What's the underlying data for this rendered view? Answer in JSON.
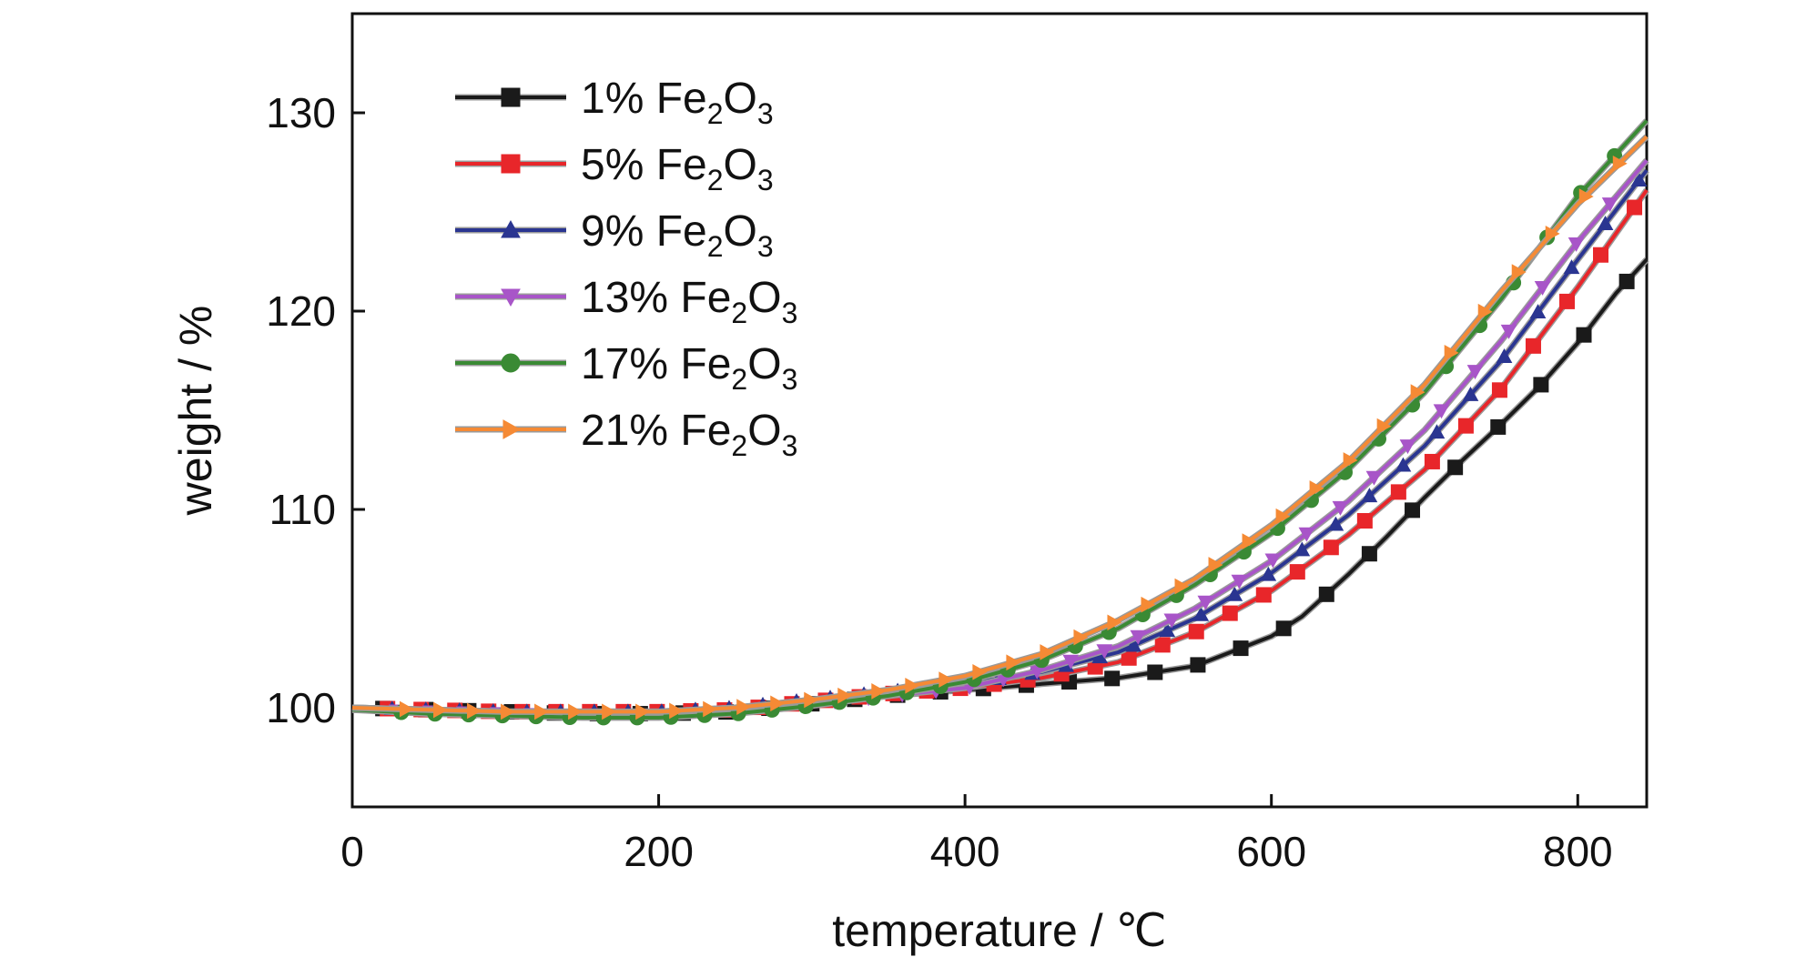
{
  "chart_data": {
    "type": "line",
    "title": "",
    "xlabel": "temperature / ℃",
    "ylabel": "weight / %",
    "xlim": [
      0,
      845
    ],
    "ylim": [
      95,
      135
    ],
    "xticks": [
      0,
      200,
      400,
      600,
      800
    ],
    "yticks": [
      100,
      110,
      120,
      130
    ],
    "grid": false,
    "legend_position": "top-left",
    "series": [
      {
        "name": "1% Fe2O3",
        "label_parts": [
          "1% Fe",
          "2",
          "O",
          "3"
        ],
        "color": "#1a1a1a",
        "marker": "square",
        "x": [
          0,
          50,
          100,
          150,
          200,
          250,
          300,
          350,
          400,
          450,
          500,
          550,
          600,
          620,
          650,
          675,
          700,
          725,
          750,
          775,
          800,
          825,
          845
        ],
        "y": [
          100.0,
          99.9,
          99.8,
          99.7,
          99.7,
          99.8,
          100.2,
          100.6,
          100.9,
          101.2,
          101.5,
          102.1,
          103.6,
          104.6,
          106.7,
          108.6,
          110.6,
          112.5,
          114.3,
          116.2,
          118.4,
          120.9,
          122.6
        ]
      },
      {
        "name": "5% Fe2O3",
        "label_parts": [
          "5% Fe",
          "2",
          "O",
          "3"
        ],
        "color": "#e8262a",
        "marker": "square",
        "x": [
          0,
          50,
          100,
          150,
          200,
          250,
          300,
          350,
          400,
          450,
          500,
          550,
          600,
          650,
          700,
          750,
          800,
          845
        ],
        "y": [
          100.0,
          99.9,
          99.8,
          99.8,
          99.8,
          99.9,
          100.3,
          100.7,
          101.0,
          101.5,
          102.3,
          103.8,
          105.9,
          108.7,
          112.0,
          116.1,
          121.2,
          126.1
        ]
      },
      {
        "name": "9% Fe2O3",
        "label_parts": [
          "9% Fe",
          "2",
          "O",
          "3"
        ],
        "color": "#2a3591",
        "marker": "triangle-up",
        "x": [
          0,
          50,
          100,
          150,
          200,
          250,
          300,
          350,
          400,
          450,
          500,
          550,
          600,
          650,
          700,
          750,
          800,
          845
        ],
        "y": [
          100.0,
          99.9,
          99.8,
          99.8,
          99.8,
          100.0,
          100.4,
          100.8,
          101.2,
          101.8,
          102.8,
          104.5,
          106.8,
          109.7,
          113.2,
          117.5,
          122.6,
          127.1
        ]
      },
      {
        "name": "13% Fe2O3",
        "label_parts": [
          "13% Fe",
          "2",
          "O",
          "3"
        ],
        "color": "#a855c8",
        "marker": "triangle-down",
        "x": [
          0,
          50,
          100,
          150,
          200,
          250,
          300,
          350,
          400,
          450,
          500,
          550,
          600,
          650,
          700,
          750,
          800,
          845
        ],
        "y": [
          99.9,
          99.8,
          99.7,
          99.6,
          99.6,
          99.8,
          100.2,
          100.6,
          101.0,
          101.9,
          103.1,
          105.0,
          107.4,
          110.4,
          114.0,
          118.5,
          123.5,
          127.6
        ]
      },
      {
        "name": "17% Fe2O3",
        "label_parts": [
          "17% Fe",
          "2",
          "O",
          "3"
        ],
        "color": "#3a8a34",
        "marker": "circle",
        "x": [
          0,
          50,
          100,
          150,
          200,
          250,
          300,
          350,
          400,
          450,
          500,
          550,
          600,
          650,
          700,
          750,
          800,
          845
        ],
        "y": [
          99.9,
          99.7,
          99.6,
          99.5,
          99.5,
          99.7,
          100.1,
          100.6,
          101.3,
          102.4,
          104.0,
          106.2,
          108.8,
          112.0,
          115.9,
          120.6,
          125.8,
          129.6
        ]
      },
      {
        "name": "21% Fe2O3",
        "label_parts": [
          "21% Fe",
          "2",
          "O",
          "3"
        ],
        "color": "#f58a35",
        "marker": "triangle-right",
        "x": [
          0,
          50,
          100,
          150,
          200,
          250,
          300,
          350,
          400,
          450,
          500,
          550,
          600,
          650,
          700,
          750,
          800,
          845
        ],
        "y": [
          100.0,
          99.9,
          99.8,
          99.8,
          99.8,
          100.0,
          100.4,
          100.9,
          101.6,
          102.7,
          104.4,
          106.5,
          109.2,
          112.4,
          116.3,
          121.0,
          125.4,
          128.8
        ]
      }
    ]
  }
}
